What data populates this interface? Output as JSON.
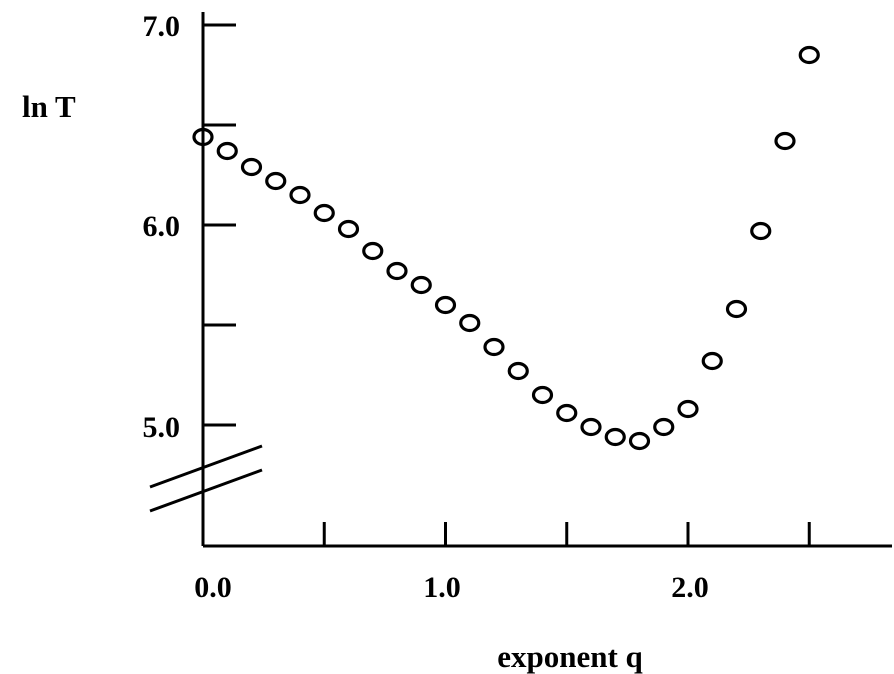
{
  "chart_data": {
    "type": "scatter",
    "title": "",
    "xlabel": "exponent q",
    "ylabel": "ln T",
    "xlim": [
      0,
      2.9
    ],
    "ylim": [
      4.4,
      7.05
    ],
    "x_ticks": [
      0,
      0.5,
      1.0,
      1.5,
      2.0,
      2.5
    ],
    "x_tick_labels": [
      "0.0",
      "",
      "1.0",
      "",
      "2.0",
      ""
    ],
    "y_ticks": [
      5.0,
      5.5,
      6.0,
      6.5,
      7.0
    ],
    "y_tick_labels": [
      "5.0",
      "",
      "6.0",
      "",
      "7.0"
    ],
    "axis_break": true,
    "grid": false,
    "legend": "none",
    "marker": "open-circle",
    "color": "#000000",
    "series": [
      {
        "x": [
          0.0,
          0.1,
          0.2,
          0.3,
          0.4,
          0.5,
          0.6,
          0.7,
          0.8,
          0.9,
          1.0,
          1.1,
          1.2,
          1.3,
          1.4,
          1.5,
          1.6,
          1.7,
          1.8,
          1.9,
          2.0,
          2.1,
          2.2,
          2.3,
          2.4,
          2.5
        ],
        "y": [
          6.44,
          6.37,
          6.29,
          6.22,
          6.15,
          6.06,
          5.98,
          5.87,
          5.77,
          5.7,
          5.6,
          5.51,
          5.39,
          5.27,
          5.15,
          5.06,
          4.99,
          4.94,
          4.92,
          4.99,
          5.08,
          5.32,
          5.58,
          5.97,
          6.42,
          6.85
        ]
      }
    ]
  }
}
